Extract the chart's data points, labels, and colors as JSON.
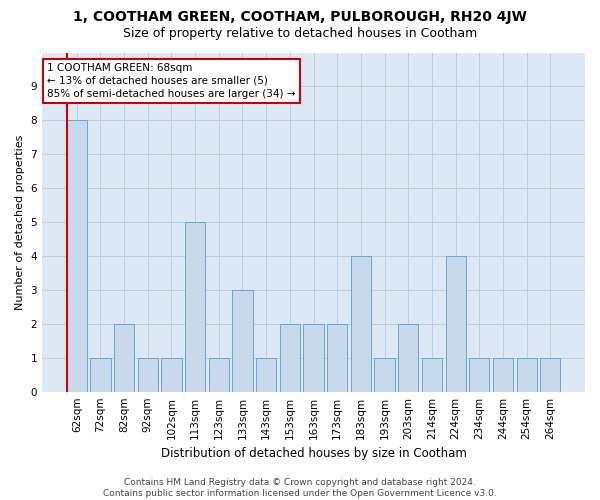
{
  "title": "1, COOTHAM GREEN, COOTHAM, PULBOROUGH, RH20 4JW",
  "subtitle": "Size of property relative to detached houses in Cootham",
  "xlabel": "Distribution of detached houses by size in Cootham",
  "ylabel": "Number of detached properties",
  "categories": [
    "62sqm",
    "72sqm",
    "82sqm",
    "92sqm",
    "102sqm",
    "113sqm",
    "123sqm",
    "133sqm",
    "143sqm",
    "153sqm",
    "163sqm",
    "173sqm",
    "183sqm",
    "193sqm",
    "203sqm",
    "214sqm",
    "224sqm",
    "234sqm",
    "244sqm",
    "254sqm",
    "264sqm"
  ],
  "values": [
    8,
    1,
    2,
    1,
    1,
    5,
    1,
    3,
    1,
    2,
    2,
    2,
    4,
    1,
    2,
    1,
    4,
    1,
    1,
    1,
    1
  ],
  "bar_color": "#c8d9ec",
  "bar_edge_color": "#5b9bd5",
  "annotation_box_text": "1 COOTHAM GREEN: 68sqm\n← 13% of detached houses are smaller (5)\n85% of semi-detached houses are larger (34) →",
  "annotation_box_color": "#ffffff",
  "annotation_box_edge_color": "#cc0000",
  "ylim": [
    0,
    10
  ],
  "yticks": [
    0,
    1,
    2,
    3,
    4,
    5,
    6,
    7,
    8,
    9,
    10
  ],
  "grid_color": "#b8cfe0",
  "background_color": "#dce9f5",
  "fig_background": "#ffffff",
  "footer_line1": "Contains HM Land Registry data © Crown copyright and database right 2024.",
  "footer_line2": "Contains public sector information licensed under the Open Government Licence v3.0.",
  "title_fontsize": 10,
  "subtitle_fontsize": 9,
  "xlabel_fontsize": 8.5,
  "ylabel_fontsize": 8,
  "tick_fontsize": 7.5,
  "annotation_fontsize": 7.5,
  "footer_fontsize": 6.5
}
